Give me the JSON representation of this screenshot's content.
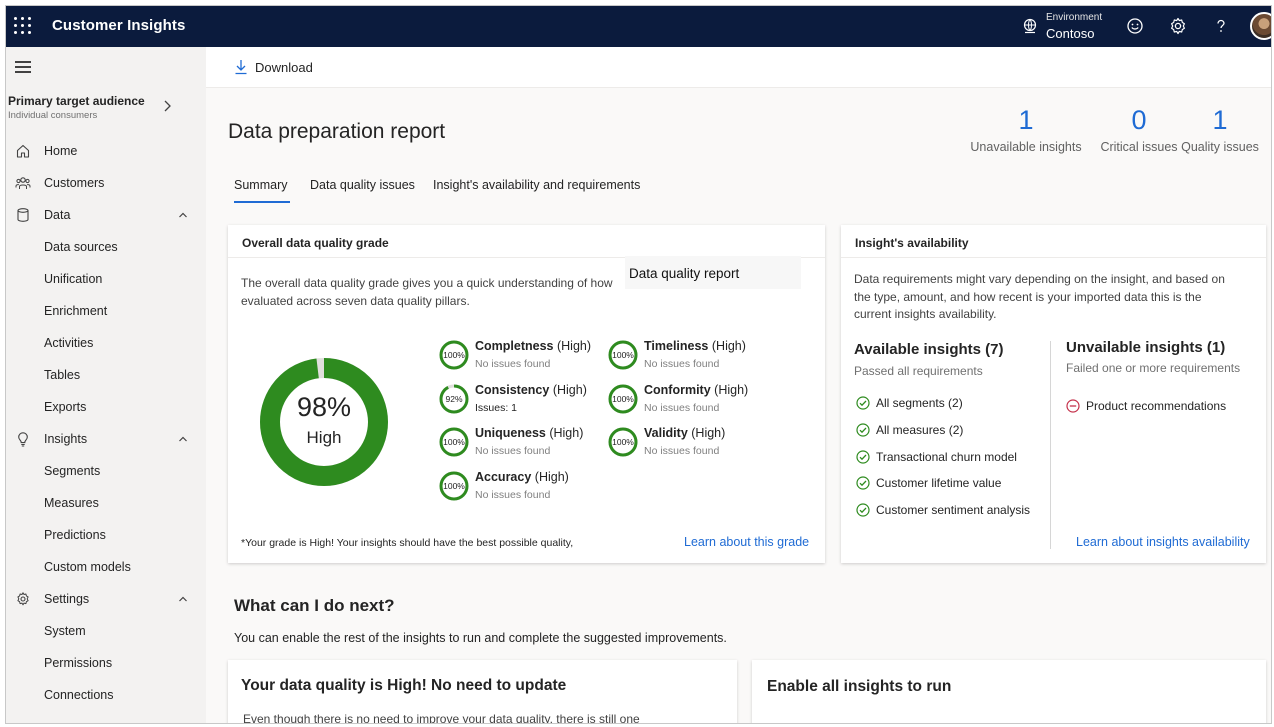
{
  "topbar": {
    "app_title": "Customer Insights",
    "environment_label": "Environment",
    "environment_value": "Contoso",
    "icons": [
      "app-launcher-icon",
      "environment-icon",
      "smiley-icon",
      "gear-icon",
      "help-icon",
      "avatar"
    ]
  },
  "sidebar": {
    "audience_title": "Primary target audience",
    "audience_subtitle": "Individual consumers",
    "items": [
      {
        "label": "Home",
        "icon": "home-icon",
        "level": 0
      },
      {
        "label": "Customers",
        "icon": "customers-icon",
        "level": 0
      },
      {
        "label": "Data",
        "icon": "database-icon",
        "level": 0,
        "expanded": true
      },
      {
        "label": "Data sources",
        "level": 1
      },
      {
        "label": "Unification",
        "level": 1
      },
      {
        "label": "Enrichment",
        "level": 1
      },
      {
        "label": "Activities",
        "level": 1
      },
      {
        "label": "Tables",
        "level": 1
      },
      {
        "label": "Exports",
        "level": 1
      },
      {
        "label": "Insights",
        "icon": "lightbulb-icon",
        "level": 0,
        "expanded": true
      },
      {
        "label": "Segments",
        "level": 1
      },
      {
        "label": "Measures",
        "level": 1
      },
      {
        "label": "Predictions",
        "level": 1
      },
      {
        "label": "Custom models",
        "level": 1
      },
      {
        "label": "Settings",
        "icon": "gear-icon",
        "level": 0,
        "expanded": true
      },
      {
        "label": "System",
        "level": 1
      },
      {
        "label": "Permissions",
        "level": 1
      },
      {
        "label": "Connections",
        "level": 1
      }
    ]
  },
  "toolbar": {
    "download_label": "Download"
  },
  "page": {
    "title": "Data preparation report",
    "stats": [
      {
        "value": "1",
        "caption": "Unavailable insights"
      },
      {
        "value": "0",
        "caption": "Critical issues"
      },
      {
        "value": "1",
        "caption": "Quality issues"
      }
    ],
    "tabs": [
      {
        "label": "Summary",
        "active": true
      },
      {
        "label": "Data quality issues",
        "active": false
      },
      {
        "label": "Insight's availability and requirements",
        "active": false
      }
    ]
  },
  "quality_card": {
    "header": "Overall data quality grade",
    "description_line1": "The overall data quality grade gives you a quick understanding of how",
    "description_line2": "evaluated across seven data quality pillars.",
    "tooltip": "Data quality report",
    "grade_value": "98%",
    "grade_fraction": 0.98,
    "grade_label": "High",
    "pillars": [
      {
        "name": "Completness",
        "level": "(High)",
        "pct": "100%",
        "fraction": 1.0,
        "status": "No issues found"
      },
      {
        "name": "Consistency",
        "level": "(High)",
        "pct": "92%",
        "fraction": 0.92,
        "status": "Issues:  1"
      },
      {
        "name": "Uniqueness",
        "level": "(High)",
        "pct": "100%",
        "fraction": 1.0,
        "status": "No issues found"
      },
      {
        "name": "Accuracy",
        "level": "(High)",
        "pct": "100%",
        "fraction": 1.0,
        "status": "No issues found"
      },
      {
        "name": "Timeliness",
        "level": "(High)",
        "pct": "100%",
        "fraction": 1.0,
        "status": "No issues found"
      },
      {
        "name": "Conformity",
        "level": "(High)",
        "pct": "100%",
        "fraction": 1.0,
        "status": "No issues found"
      },
      {
        "name": "Validity",
        "level": "(High)",
        "pct": "100%",
        "fraction": 1.0,
        "status": "No issues found"
      }
    ],
    "footnote": "*Your grade is High! Your insights should have the best possible quality,",
    "link": "Learn about this grade"
  },
  "availability_card": {
    "header": "Insight's availability",
    "description_line1": "Data requirements might vary depending on the insight, and based on",
    "description_line2": "the type, amount, and how recent is your imported data this is the",
    "description_line3": "current insights availability.",
    "available_title": "Available insights (7)",
    "available_sub": "Passed all requirements",
    "available_items": [
      "All segments (2)",
      "All measures (2)",
      "Transactional churn model",
      "Customer lifetime value",
      "Customer sentiment analysis"
    ],
    "unavailable_title": "Unvailable insights (1)",
    "unavailable_sub": "Failed one or more requirements",
    "unavailable_items": [
      "Product recommendations"
    ],
    "link": "Learn about insights availability"
  },
  "next": {
    "title": "What can I do next?",
    "subtitle": "You can enable the rest of the insights to run and complete the suggested improvements.",
    "card1_title": "Your data quality is High! No need to update",
    "card1_text": "Even though there is no need to improve your data quality, there is still one",
    "card2_title": "Enable all insights to run"
  },
  "colors": {
    "topbar": "#0b1b3d",
    "accent": "#1f6bd4",
    "quality_green": "#2e8b1f",
    "error_red": "#c4314b"
  }
}
